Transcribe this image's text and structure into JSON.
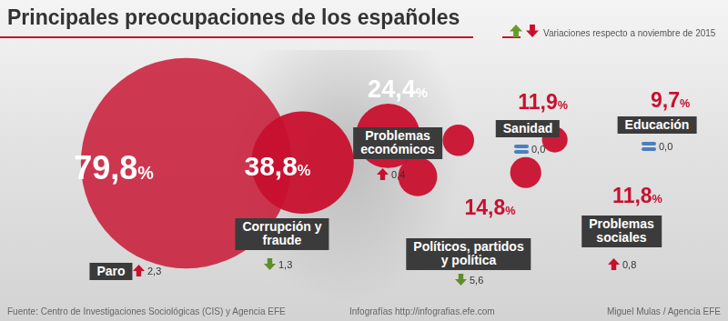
{
  "chart_data": {
    "type": "bubble",
    "title": "Principales preocupaciones de los españoles",
    "subtitle": "Variaciones respecto a noviembre de 2015",
    "source": "Fuente: Centro de Investigaciones Sociológicas (CIS) y Agencia EFE",
    "credits": [
      "Infografías http://infografias.efe.com",
      "Miguel Mulas / Agencia EFE"
    ],
    "categories": [
      "Paro",
      "Corrupción y\nfraude",
      "Problemas\neconómicos",
      "Políticos, partidos\ny política",
      "Sanidad",
      "Educación",
      "Problemas\nsociales"
    ],
    "values": [
      79.8,
      38.8,
      24.4,
      14.8,
      11.9,
      9.7,
      11.8
    ],
    "value_labels": [
      "79,8%",
      "38,8%",
      "24,4%",
      "14,8%",
      "11,9%",
      "9,7%",
      "11,8%"
    ],
    "changes": [
      2.3,
      -1.3,
      0.4,
      -5.6,
      0,
      0,
      0.8
    ],
    "change_labels": [
      "2,3",
      "1,3",
      "0,4",
      "5,6",
      "0,0",
      "0,0",
      "0,8"
    ],
    "color": "#c8102e",
    "data_labels": true,
    "tick_labels": false
  }
}
